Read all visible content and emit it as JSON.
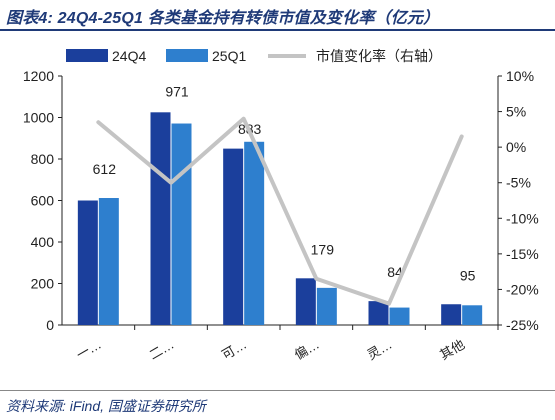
{
  "figure": {
    "title": "图表4: 24Q4-25Q1 各类基金持有转债市值及变化率（亿元）",
    "source": "资料来源: iFind, 国盛证券研究所"
  },
  "colors": {
    "series_24q4": "#1b3f9c",
    "series_25q1": "#2e7fce",
    "change_line": "#c4c4c4",
    "title": "#1f3a78"
  },
  "chart_data": {
    "type": "bar",
    "categories": [
      "一…",
      "二…",
      "可…",
      "偏…",
      "灵…",
      "其他"
    ],
    "series": [
      {
        "name": "24Q4",
        "type": "bar",
        "axis": "left",
        "values": [
          600,
          1025,
          850,
          225,
          115,
          100
        ]
      },
      {
        "name": "25Q1",
        "type": "bar",
        "axis": "left",
        "values": [
          612,
          971,
          883,
          179,
          84,
          95
        ]
      },
      {
        "name": "市值变化率（右轴）",
        "type": "line",
        "axis": "right",
        "values": [
          3.5,
          -5.0,
          4.0,
          -18.5,
          -22.0,
          1.5
        ]
      }
    ],
    "data_labels": [
      "612",
      "971",
      "883",
      "179",
      "84",
      "95"
    ],
    "left_axis": {
      "ylim": [
        0,
        1200
      ],
      "ticks": [
        "0",
        "200",
        "400",
        "600",
        "800",
        "1000",
        "1200"
      ]
    },
    "right_axis": {
      "ylim": [
        -25,
        10
      ],
      "ticks": [
        "10%",
        "5%",
        "0%",
        "-5%",
        "-10%",
        "-15%",
        "-20%",
        "-25%"
      ]
    },
    "legend": {
      "placement": "top",
      "entries": [
        "24Q4",
        "25Q1",
        "市值变化率（右轴）"
      ]
    },
    "grid": false
  }
}
